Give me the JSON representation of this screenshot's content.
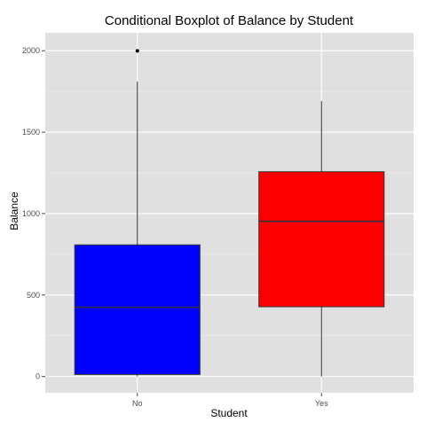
{
  "chart_data": {
    "type": "boxplot",
    "title": "Conditional Boxplot of Balance by Student",
    "xlabel": "Student",
    "ylabel": "Balance",
    "categories": [
      "No",
      "Yes"
    ],
    "ylim": [
      -100,
      2110
    ],
    "yticks": [
      0,
      500,
      1000,
      1500,
      2000
    ],
    "grid": true,
    "colors": {
      "panel": "#e0e0e0",
      "grid_major": "#ffffff",
      "grid_minor": "#eeeeee",
      "outline": "#333333"
    },
    "series": [
      {
        "name": "No",
        "color": "#0000ff",
        "min": 0,
        "q1": 12,
        "median": 425,
        "q3": 808,
        "max": 1810,
        "outliers": [
          1999
        ]
      },
      {
        "name": "Yes",
        "color": "#ff0000",
        "min": 0,
        "q1": 428,
        "median": 953,
        "q3": 1257,
        "max": 1690,
        "outliers": []
      }
    ]
  }
}
